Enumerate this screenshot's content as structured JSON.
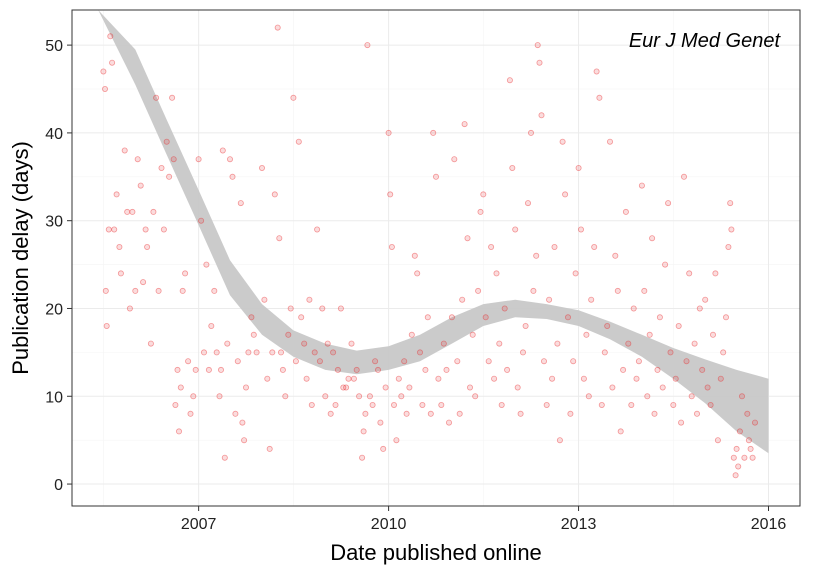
{
  "chart_data": {
    "type": "scatter",
    "title": "",
    "xlabel": "Date published online",
    "ylabel": "Publication delay (days)",
    "annotation": "Eur J Med Genet",
    "xlim": [
      "2005-01-01",
      "2016-07-01"
    ],
    "ylim": [
      -2.5,
      54
    ],
    "x_ticks": [
      "2007",
      "2010",
      "2013",
      "2016"
    ],
    "y_ticks": [
      "0",
      "10",
      "20",
      "30",
      "40",
      "50"
    ],
    "grid": true,
    "point_color": "#e8272b",
    "band_color": "#c8c8c8",
    "smooth_band": {
      "x": [
        "2005-06-01",
        "2006-01-01",
        "2006-07-01",
        "2007-01-01",
        "2007-07-01",
        "2008-01-01",
        "2008-07-01",
        "2009-01-01",
        "2009-07-01",
        "2010-01-01",
        "2010-07-01",
        "2011-01-01",
        "2011-07-01",
        "2012-01-01",
        "2012-07-01",
        "2013-01-01",
        "2013-07-01",
        "2014-01-01",
        "2014-07-01",
        "2015-01-01",
        "2015-07-01",
        "2016-01-01"
      ],
      "lower": [
        54,
        45.5,
        37.5,
        29.5,
        21.5,
        17.0,
        14.5,
        13.0,
        12.5,
        13.0,
        14.0,
        16.0,
        18.0,
        19.0,
        18.8,
        18.0,
        16.5,
        14.5,
        12.0,
        9.2,
        6.0,
        3.5
      ],
      "upper": [
        54,
        49.5,
        41.5,
        33.5,
        25.5,
        20.5,
        17.5,
        16.0,
        15.2,
        15.7,
        17.0,
        19.0,
        20.5,
        21.0,
        20.5,
        19.8,
        18.5,
        17.0,
        15.5,
        14.2,
        13.0,
        12.0
      ]
    },
    "points": [
      [
        "2005-07-01",
        47
      ],
      [
        "2005-07-10",
        45
      ],
      [
        "2005-07-15",
        22
      ],
      [
        "2005-07-20",
        18
      ],
      [
        "2005-08-01",
        29
      ],
      [
        "2005-08-10",
        51
      ],
      [
        "2005-08-20",
        48
      ],
      [
        "2005-09-01",
        29
      ],
      [
        "2005-09-15",
        33
      ],
      [
        "2005-10-01",
        27
      ],
      [
        "2005-10-10",
        24
      ],
      [
        "2005-11-01",
        38
      ],
      [
        "2005-11-15",
        31
      ],
      [
        "2005-12-01",
        20
      ],
      [
        "2005-12-15",
        31
      ],
      [
        "2006-01-01",
        22
      ],
      [
        "2006-01-15",
        37
      ],
      [
        "2006-02-01",
        34
      ],
      [
        "2006-02-15",
        23
      ],
      [
        "2006-03-01",
        29
      ],
      [
        "2006-03-10",
        27
      ],
      [
        "2006-04-01",
        16
      ],
      [
        "2006-04-15",
        31
      ],
      [
        "2006-05-01",
        44
      ],
      [
        "2006-05-15",
        22
      ],
      [
        "2006-06-01",
        36
      ],
      [
        "2006-06-15",
        29
      ],
      [
        "2006-07-01",
        39
      ],
      [
        "2006-07-15",
        35
      ],
      [
        "2006-08-01",
        44
      ],
      [
        "2006-08-10",
        37
      ],
      [
        "2006-08-20",
        9
      ],
      [
        "2006-09-01",
        13
      ],
      [
        "2006-09-10",
        6
      ],
      [
        "2006-09-20",
        11
      ],
      [
        "2006-10-01",
        22
      ],
      [
        "2006-10-15",
        24
      ],
      [
        "2006-11-01",
        14
      ],
      [
        "2006-11-15",
        8
      ],
      [
        "2006-12-01",
        10
      ],
      [
        "2006-12-15",
        13
      ],
      [
        "2007-01-01",
        37
      ],
      [
        "2007-01-15",
        30
      ],
      [
        "2007-02-01",
        15
      ],
      [
        "2007-02-15",
        25
      ],
      [
        "2007-03-01",
        13
      ],
      [
        "2007-03-15",
        18
      ],
      [
        "2007-04-01",
        22
      ],
      [
        "2007-04-15",
        15
      ],
      [
        "2007-05-01",
        10
      ],
      [
        "2007-05-10",
        13
      ],
      [
        "2007-05-20",
        38
      ],
      [
        "2007-06-01",
        3
      ],
      [
        "2007-06-15",
        16
      ],
      [
        "2007-07-01",
        37
      ],
      [
        "2007-07-15",
        35
      ],
      [
        "2007-08-01",
        8
      ],
      [
        "2007-08-15",
        14
      ],
      [
        "2007-09-01",
        32
      ],
      [
        "2007-09-10",
        7
      ],
      [
        "2007-09-20",
        5
      ],
      [
        "2007-10-01",
        11
      ],
      [
        "2007-10-15",
        15
      ],
      [
        "2007-11-01",
        19
      ],
      [
        "2007-11-15",
        17
      ],
      [
        "2007-12-01",
        15
      ],
      [
        "2008-01-01",
        36
      ],
      [
        "2008-01-15",
        21
      ],
      [
        "2008-02-01",
        12
      ],
      [
        "2008-02-15",
        4
      ],
      [
        "2008-03-01",
        15
      ],
      [
        "2008-03-15",
        33
      ],
      [
        "2008-04-01",
        52
      ],
      [
        "2008-04-10",
        28
      ],
      [
        "2008-04-20",
        15
      ],
      [
        "2008-05-01",
        13
      ],
      [
        "2008-05-15",
        10
      ],
      [
        "2008-06-01",
        17
      ],
      [
        "2008-06-15",
        20
      ],
      [
        "2008-07-01",
        44
      ],
      [
        "2008-07-15",
        14
      ],
      [
        "2008-08-01",
        39
      ],
      [
        "2008-08-15",
        19
      ],
      [
        "2008-09-01",
        16
      ],
      [
        "2008-09-15",
        12
      ],
      [
        "2008-10-01",
        21
      ],
      [
        "2008-10-15",
        9
      ],
      [
        "2008-11-01",
        15
      ],
      [
        "2008-11-15",
        29
      ],
      [
        "2008-12-01",
        14
      ],
      [
        "2008-12-15",
        20
      ],
      [
        "2009-01-01",
        10
      ],
      [
        "2009-01-15",
        16
      ],
      [
        "2009-02-01",
        8
      ],
      [
        "2009-02-15",
        15
      ],
      [
        "2009-03-01",
        9
      ],
      [
        "2009-03-15",
        13
      ],
      [
        "2009-04-01",
        20
      ],
      [
        "2009-04-15",
        11
      ],
      [
        "2009-05-01",
        11
      ],
      [
        "2009-05-15",
        12
      ],
      [
        "2009-06-01",
        16
      ],
      [
        "2009-06-15",
        12
      ],
      [
        "2009-07-01",
        13
      ],
      [
        "2009-07-15",
        10
      ],
      [
        "2009-08-01",
        3
      ],
      [
        "2009-08-10",
        6
      ],
      [
        "2009-08-20",
        8
      ],
      [
        "2009-09-01",
        50
      ],
      [
        "2009-09-15",
        10
      ],
      [
        "2009-10-01",
        9
      ],
      [
        "2009-10-15",
        14
      ],
      [
        "2009-11-01",
        13
      ],
      [
        "2009-11-15",
        7
      ],
      [
        "2009-12-01",
        4
      ],
      [
        "2009-12-15",
        11
      ],
      [
        "2010-01-01",
        40
      ],
      [
        "2010-01-10",
        33
      ],
      [
        "2010-01-20",
        27
      ],
      [
        "2010-02-01",
        9
      ],
      [
        "2010-02-15",
        5
      ],
      [
        "2010-03-01",
        12
      ],
      [
        "2010-03-15",
        10
      ],
      [
        "2010-04-01",
        14
      ],
      [
        "2010-04-15",
        8
      ],
      [
        "2010-05-01",
        11
      ],
      [
        "2010-05-15",
        17
      ],
      [
        "2010-06-01",
        26
      ],
      [
        "2010-06-15",
        24
      ],
      [
        "2010-07-01",
        15
      ],
      [
        "2010-07-15",
        9
      ],
      [
        "2010-08-01",
        13
      ],
      [
        "2010-08-15",
        19
      ],
      [
        "2010-09-01",
        8
      ],
      [
        "2010-09-15",
        40
      ],
      [
        "2010-10-01",
        35
      ],
      [
        "2010-10-15",
        12
      ],
      [
        "2010-11-01",
        9
      ],
      [
        "2010-11-15",
        16
      ],
      [
        "2010-12-01",
        13
      ],
      [
        "2010-12-15",
        7
      ],
      [
        "2011-01-01",
        19
      ],
      [
        "2011-01-15",
        37
      ],
      [
        "2011-02-01",
        14
      ],
      [
        "2011-02-15",
        8
      ],
      [
        "2011-03-01",
        21
      ],
      [
        "2011-03-15",
        41
      ],
      [
        "2011-04-01",
        28
      ],
      [
        "2011-04-15",
        11
      ],
      [
        "2011-05-01",
        17
      ],
      [
        "2011-05-15",
        10
      ],
      [
        "2011-06-01",
        22
      ],
      [
        "2011-06-15",
        31
      ],
      [
        "2011-07-01",
        33
      ],
      [
        "2011-07-15",
        19
      ],
      [
        "2011-08-01",
        14
      ],
      [
        "2011-08-15",
        27
      ],
      [
        "2011-09-01",
        12
      ],
      [
        "2011-09-15",
        24
      ],
      [
        "2011-10-01",
        16
      ],
      [
        "2011-10-15",
        9
      ],
      [
        "2011-11-01",
        20
      ],
      [
        "2011-11-15",
        13
      ],
      [
        "2011-12-01",
        46
      ],
      [
        "2011-12-15",
        36
      ],
      [
        "2012-01-01",
        29
      ],
      [
        "2012-01-15",
        11
      ],
      [
        "2012-02-01",
        8
      ],
      [
        "2012-02-15",
        15
      ],
      [
        "2012-03-01",
        18
      ],
      [
        "2012-03-15",
        32
      ],
      [
        "2012-04-01",
        40
      ],
      [
        "2012-04-15",
        22
      ],
      [
        "2012-05-01",
        26
      ],
      [
        "2012-05-10",
        50
      ],
      [
        "2012-05-20",
        48
      ],
      [
        "2012-06-01",
        42
      ],
      [
        "2012-06-15",
        14
      ],
      [
        "2012-07-01",
        9
      ],
      [
        "2012-07-15",
        21
      ],
      [
        "2012-08-01",
        12
      ],
      [
        "2012-08-15",
        27
      ],
      [
        "2012-09-01",
        16
      ],
      [
        "2012-09-15",
        5
      ],
      [
        "2012-10-01",
        39
      ],
      [
        "2012-10-15",
        33
      ],
      [
        "2012-11-01",
        19
      ],
      [
        "2012-11-15",
        8
      ],
      [
        "2012-12-01",
        14
      ],
      [
        "2012-12-15",
        24
      ],
      [
        "2013-01-01",
        36
      ],
      [
        "2013-01-15",
        29
      ],
      [
        "2013-02-01",
        12
      ],
      [
        "2013-02-15",
        17
      ],
      [
        "2013-03-01",
        10
      ],
      [
        "2013-03-15",
        21
      ],
      [
        "2013-04-01",
        27
      ],
      [
        "2013-04-15",
        47
      ],
      [
        "2013-05-01",
        44
      ],
      [
        "2013-05-15",
        9
      ],
      [
        "2013-06-01",
        15
      ],
      [
        "2013-06-15",
        18
      ],
      [
        "2013-07-01",
        39
      ],
      [
        "2013-07-15",
        11
      ],
      [
        "2013-08-01",
        26
      ],
      [
        "2013-08-15",
        22
      ],
      [
        "2013-09-01",
        6
      ],
      [
        "2013-09-15",
        13
      ],
      [
        "2013-10-01",
        31
      ],
      [
        "2013-10-15",
        16
      ],
      [
        "2013-11-01",
        9
      ],
      [
        "2013-11-15",
        20
      ],
      [
        "2013-12-01",
        12
      ],
      [
        "2013-12-15",
        14
      ],
      [
        "2014-01-01",
        34
      ],
      [
        "2014-01-15",
        22
      ],
      [
        "2014-02-01",
        10
      ],
      [
        "2014-02-15",
        17
      ],
      [
        "2014-03-01",
        28
      ],
      [
        "2014-03-15",
        8
      ],
      [
        "2014-04-01",
        13
      ],
      [
        "2014-04-15",
        19
      ],
      [
        "2014-05-01",
        11
      ],
      [
        "2014-05-15",
        25
      ],
      [
        "2014-06-01",
        32
      ],
      [
        "2014-06-15",
        15
      ],
      [
        "2014-07-01",
        9
      ],
      [
        "2014-07-15",
        12
      ],
      [
        "2014-08-01",
        18
      ],
      [
        "2014-08-15",
        7
      ],
      [
        "2014-09-01",
        35
      ],
      [
        "2014-09-15",
        14
      ],
      [
        "2014-10-01",
        24
      ],
      [
        "2014-10-15",
        10
      ],
      [
        "2014-11-01",
        16
      ],
      [
        "2014-11-15",
        8
      ],
      [
        "2014-12-01",
        20
      ],
      [
        "2014-12-15",
        13
      ],
      [
        "2015-01-01",
        21
      ],
      [
        "2015-01-15",
        11
      ],
      [
        "2015-02-01",
        9
      ],
      [
        "2015-02-15",
        17
      ],
      [
        "2015-03-01",
        24
      ],
      [
        "2015-03-15",
        5
      ],
      [
        "2015-04-01",
        12
      ],
      [
        "2015-04-15",
        15
      ],
      [
        "2015-05-01",
        19
      ],
      [
        "2015-05-15",
        27
      ],
      [
        "2015-05-25",
        32
      ],
      [
        "2015-06-01",
        29
      ],
      [
        "2015-06-15",
        3
      ],
      [
        "2015-06-25",
        1
      ],
      [
        "2015-07-01",
        4
      ],
      [
        "2015-07-10",
        2
      ],
      [
        "2015-07-20",
        6
      ],
      [
        "2015-08-01",
        10
      ],
      [
        "2015-08-15",
        3
      ],
      [
        "2015-09-01",
        8
      ],
      [
        "2015-09-10",
        5
      ],
      [
        "2015-09-20",
        4
      ],
      [
        "2015-10-01",
        3
      ],
      [
        "2015-10-15",
        7
      ]
    ]
  }
}
